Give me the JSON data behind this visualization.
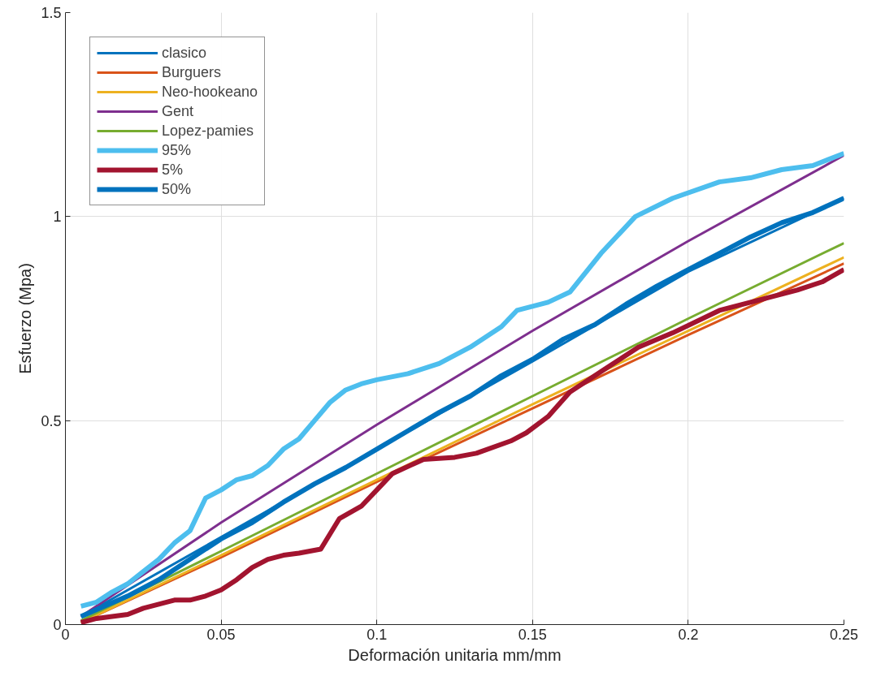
{
  "chart_data": {
    "type": "line",
    "xlabel": "Deformación unitaria mm/mm",
    "ylabel": "Esfuerzo (Mpa)",
    "xlim": [
      0,
      0.25
    ],
    "ylim": [
      0,
      1.5
    ],
    "xticks": [
      0,
      0.05,
      0.1,
      0.15,
      0.2,
      0.25
    ],
    "yticks": [
      0,
      0.5,
      1,
      1.5
    ],
    "grid": true,
    "legend": "top left",
    "marker": "none",
    "line_style": "solid",
    "series": [
      {
        "name": "clasico",
        "color": "#0072bd",
        "x": [
          0.005,
          0.1,
          0.15,
          0.2,
          0.25
        ],
        "values": [
          0.02,
          0.43,
          0.645,
          0.865,
          1.045
        ]
      },
      {
        "name": "Burguers",
        "color": "#d95319",
        "x": [
          0.005,
          0.05,
          0.1,
          0.15,
          0.2,
          0.25
        ],
        "values": [
          0.005,
          0.165,
          0.35,
          0.53,
          0.71,
          0.885
        ]
      },
      {
        "name": "Neo-hookeano",
        "color": "#edb120",
        "x": [
          0.005,
          0.05,
          0.1,
          0.15,
          0.2,
          0.25
        ],
        "values": [
          0.005,
          0.17,
          0.355,
          0.54,
          0.72,
          0.9
        ]
      },
      {
        "name": "Gent",
        "color": "#7e2f8e",
        "x": [
          0.005,
          0.05,
          0.1,
          0.15,
          0.2,
          0.25
        ],
        "values": [
          0.02,
          0.25,
          0.49,
          0.72,
          0.94,
          1.15
        ]
      },
      {
        "name": "Lopez-pamies",
        "color": "#77ac30",
        "x": [
          0.005,
          0.05,
          0.1,
          0.15,
          0.2,
          0.25
        ],
        "values": [
          0.01,
          0.18,
          0.37,
          0.56,
          0.75,
          0.935
        ]
      },
      {
        "name": "95%",
        "color": "#4dbeee",
        "x": [
          0.005,
          0.01,
          0.015,
          0.02,
          0.025,
          0.03,
          0.035,
          0.04,
          0.045,
          0.05,
          0.055,
          0.06,
          0.065,
          0.07,
          0.075,
          0.08,
          0.085,
          0.09,
          0.095,
          0.1,
          0.11,
          0.12,
          0.13,
          0.14,
          0.145,
          0.155,
          0.162,
          0.172,
          0.183,
          0.195,
          0.21,
          0.22,
          0.23,
          0.24,
          0.25
        ],
        "values": [
          0.045,
          0.055,
          0.08,
          0.1,
          0.13,
          0.16,
          0.2,
          0.23,
          0.31,
          0.33,
          0.355,
          0.365,
          0.39,
          0.43,
          0.455,
          0.5,
          0.545,
          0.575,
          0.59,
          0.6,
          0.615,
          0.64,
          0.68,
          0.73,
          0.77,
          0.79,
          0.815,
          0.91,
          1.0,
          1.045,
          1.085,
          1.095,
          1.115,
          1.125,
          1.155
        ]
      },
      {
        "name": "5%",
        "color": "#a2142f",
        "x": [
          0.005,
          0.01,
          0.015,
          0.02,
          0.025,
          0.03,
          0.035,
          0.04,
          0.045,
          0.05,
          0.055,
          0.06,
          0.065,
          0.07,
          0.075,
          0.082,
          0.088,
          0.095,
          0.1,
          0.105,
          0.115,
          0.125,
          0.132,
          0.143,
          0.148,
          0.155,
          0.162,
          0.172,
          0.184,
          0.195,
          0.21,
          0.225,
          0.235,
          0.243,
          0.25
        ],
        "values": [
          0.005,
          0.015,
          0.02,
          0.025,
          0.04,
          0.05,
          0.06,
          0.06,
          0.07,
          0.085,
          0.11,
          0.14,
          0.16,
          0.17,
          0.175,
          0.185,
          0.26,
          0.29,
          0.33,
          0.37,
          0.405,
          0.41,
          0.42,
          0.45,
          0.47,
          0.51,
          0.57,
          0.62,
          0.68,
          0.715,
          0.77,
          0.8,
          0.82,
          0.84,
          0.87
        ]
      },
      {
        "name": "50%",
        "color": "#0072bd",
        "x": [
          0.005,
          0.02,
          0.03,
          0.04,
          0.05,
          0.055,
          0.06,
          0.07,
          0.08,
          0.09,
          0.1,
          0.11,
          0.12,
          0.13,
          0.14,
          0.15,
          0.16,
          0.17,
          0.18,
          0.19,
          0.2,
          0.21,
          0.22,
          0.23,
          0.24,
          0.25
        ],
        "values": [
          0.02,
          0.07,
          0.11,
          0.16,
          0.21,
          0.23,
          0.25,
          0.3,
          0.345,
          0.385,
          0.43,
          0.475,
          0.52,
          0.56,
          0.61,
          0.65,
          0.7,
          0.735,
          0.785,
          0.83,
          0.87,
          0.91,
          0.95,
          0.985,
          1.01,
          1.045
        ]
      }
    ]
  }
}
